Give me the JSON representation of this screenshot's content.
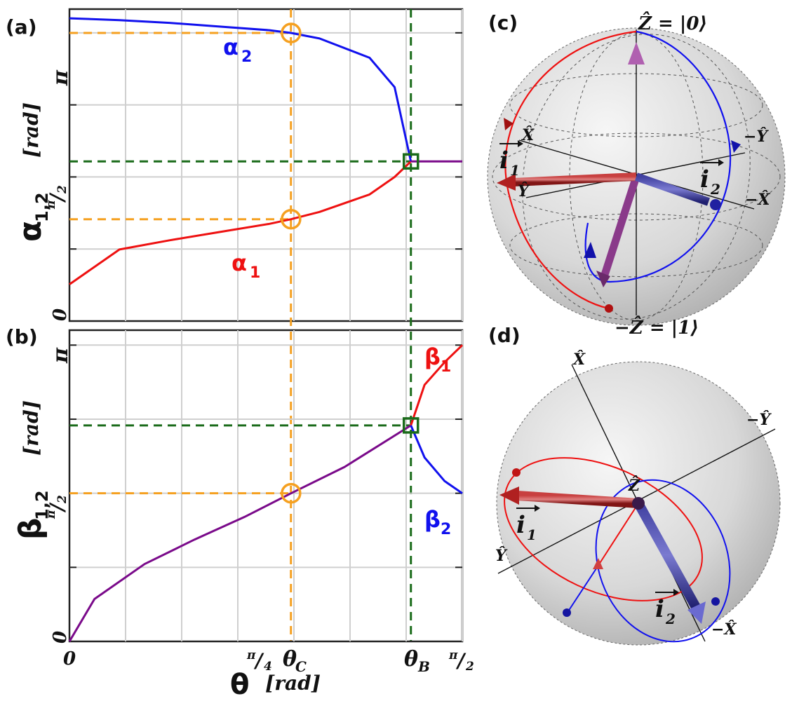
{
  "panels": {
    "a": "(a)",
    "b": "(b)",
    "c": "(c)",
    "d": "(d)"
  },
  "axes": {
    "a_ylabel_sym": "α",
    "a_ylabel_sub": "1,2",
    "a_ylabel_unit": "[rad]",
    "b_ylabel_sym": "β",
    "b_ylabel_sub": "1,2",
    "b_ylabel_unit": "[rad]",
    "xlabel_sym": "θ",
    "xlabel_unit": "[rad]",
    "x_tick_0": "0",
    "x_tick_pi4_num": "π",
    "x_tick_pi4_den": "4",
    "x_tick_pi2_num": "π",
    "x_tick_pi2_den": "2",
    "y_tick_0": "0",
    "y_tick_pi": "π",
    "y_tick_pi2_num": "π",
    "y_tick_pi2_den": "2",
    "theta_c": "θ",
    "theta_c_sub": "C",
    "theta_b": "θ",
    "theta_b_sub": "B"
  },
  "curves": {
    "alpha1": "α",
    "alpha1_sub": "1",
    "alpha2": "α",
    "alpha2_sub": "2",
    "beta1": "β",
    "beta1_sub": "1",
    "beta2": "β",
    "beta2_sub": "2"
  },
  "sphere_c": {
    "z_top": "Ẑ = |0⟩",
    "z_bottom": "−Ẑ = |1⟩",
    "x_pos": "X̂",
    "x_neg": "−X̂",
    "y_pos": "Ŷ",
    "y_neg": "−Ŷ",
    "i1": "i",
    "i1_sub": "1",
    "i2": "i",
    "i2_sub": "2"
  },
  "sphere_d": {
    "z": "Ẑ",
    "x_pos": "X̂",
    "x_neg": "−X̂",
    "y_pos": "Ŷ",
    "y_neg": "−Ŷ",
    "i1": "i",
    "i1_sub": "1",
    "i2": "i",
    "i2_sub": "2"
  },
  "colors": {
    "alpha1": "#ee1111",
    "alpha2": "#1111ee",
    "merged": "#7a0a8a",
    "theta_c": "#f5a020",
    "theta_b": "#1a6b1a",
    "arrow_purple": "#8a3a8a",
    "arrow_red": "#b02020",
    "arrow_blue": "#3030a0"
  },
  "chart_data": [
    {
      "type": "line",
      "title": "",
      "xlabel": "θ [rad]",
      "ylabel": "α1,2 [rad]",
      "xlim": [
        0,
        1.5708
      ],
      "ylim": [
        0,
        3.4
      ],
      "x_ticks": [
        "0",
        "π/4",
        "π/2"
      ],
      "y_ticks": [
        "0",
        "π/2",
        "π"
      ],
      "theta_C": 0.8856,
      "theta_B": 1.3653,
      "series": [
        {
          "name": "α1",
          "x": [
            0.0,
            0.2,
            0.4,
            0.6,
            0.8,
            0.886,
            1.0,
            1.2,
            1.3,
            1.3653
          ],
          "y": [
            0.4,
            0.78,
            0.88,
            0.97,
            1.06,
            1.11,
            1.19,
            1.38,
            1.57,
            1.74
          ]
        },
        {
          "name": "α2",
          "x": [
            0.0,
            0.2,
            0.4,
            0.6,
            0.8,
            0.886,
            1.0,
            1.2,
            1.3,
            1.3653
          ],
          "y": [
            3.3,
            3.28,
            3.25,
            3.21,
            3.17,
            3.14,
            3.08,
            2.87,
            2.55,
            1.74
          ]
        },
        {
          "name": "",
          "x": [
            1.3653,
            1.5708
          ],
          "y": [
            1.74,
            1.74
          ]
        }
      ],
      "markers": [
        {
          "x": 0.886,
          "y": 3.14,
          "shape": "circle"
        },
        {
          "x": 0.886,
          "y": 1.11,
          "shape": "circle"
        },
        {
          "x": 1.3653,
          "y": 1.74,
          "shape": "square"
        }
      ]
    },
    {
      "type": "line",
      "title": "",
      "xlabel": "θ [rad]",
      "ylabel": "β1,2 [rad]",
      "xlim": [
        0,
        1.5708
      ],
      "ylim": [
        0,
        3.3
      ],
      "x_ticks": [
        "0",
        "π/4",
        "π/2"
      ],
      "y_ticks": [
        "0",
        "π/2",
        "π"
      ],
      "series": [
        {
          "name": "",
          "x": [
            0.0,
            0.1,
            0.3,
            0.5,
            0.7,
            0.886,
            1.1,
            1.3653
          ],
          "y": [
            0.0,
            0.45,
            0.82,
            1.08,
            1.32,
            1.5708,
            1.85,
            2.29
          ]
        },
        {
          "name": "β1",
          "x": [
            1.3653,
            1.42,
            1.5,
            1.5708
          ],
          "y": [
            2.29,
            2.72,
            2.96,
            3.1416
          ]
        },
        {
          "name": "β2",
          "x": [
            1.3653,
            1.42,
            1.5,
            1.5708
          ],
          "y": [
            2.29,
            1.95,
            1.7,
            1.5708
          ]
        }
      ],
      "markers": [
        {
          "x": 0.886,
          "y": 1.5708,
          "shape": "circle"
        },
        {
          "x": 1.3653,
          "y": 2.29,
          "shape": "square"
        }
      ]
    }
  ]
}
